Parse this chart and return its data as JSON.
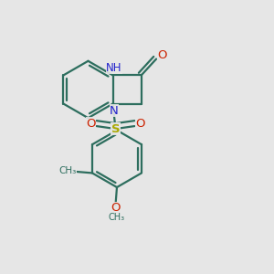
{
  "bg_color": "#e6e6e6",
  "bond_color": "#2d6e5e",
  "bond_width": 1.6,
  "n_color": "#2222cc",
  "o_color": "#cc2200",
  "s_color": "#aaaa00",
  "figsize": [
    3.0,
    3.0
  ],
  "dpi": 100,
  "xlim": [
    0.05,
    0.85
  ],
  "ylim": [
    0.02,
    1.02
  ]
}
